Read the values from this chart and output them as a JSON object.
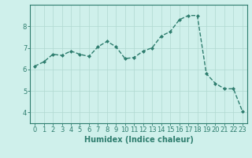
{
  "x": [
    0,
    1,
    2,
    3,
    4,
    5,
    6,
    7,
    8,
    9,
    10,
    11,
    12,
    13,
    14,
    15,
    16,
    17,
    18,
    19,
    20,
    21,
    22,
    23
  ],
  "y": [
    6.15,
    6.35,
    6.7,
    6.65,
    6.85,
    6.7,
    6.6,
    7.05,
    7.3,
    7.05,
    6.5,
    6.55,
    6.85,
    7.0,
    7.55,
    7.75,
    8.3,
    8.5,
    8.5,
    5.8,
    5.35,
    5.1,
    5.1,
    4.05
  ],
  "line_color": "#2e7d6e",
  "marker": "D",
  "marker_size": 2.0,
  "background_color": "#cff0eb",
  "grid_color": "#b0d8d0",
  "xlabel": "Humidex (Indice chaleur)",
  "xlim": [
    -0.5,
    23.5
  ],
  "ylim": [
    3.5,
    9.0
  ],
  "yticks": [
    4,
    5,
    6,
    7,
    8
  ],
  "xticks": [
    0,
    1,
    2,
    3,
    4,
    5,
    6,
    7,
    8,
    9,
    10,
    11,
    12,
    13,
    14,
    15,
    16,
    17,
    18,
    19,
    20,
    21,
    22,
    23
  ],
  "label_fontsize": 7,
  "tick_fontsize": 6,
  "line_width": 1.0,
  "axis_color": "#2e7d6e",
  "spine_color": "#2e7d6e"
}
